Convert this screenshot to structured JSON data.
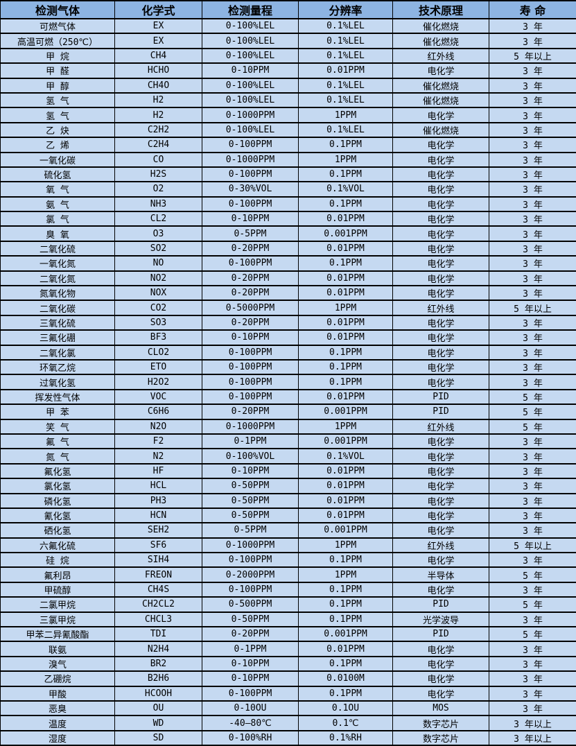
{
  "colors": {
    "header_bg": "#8DB4E2",
    "row_bg": "#C5D9F1",
    "border": "#000000",
    "text": "#000000"
  },
  "table": {
    "columns": [
      {
        "name": "gas-name",
        "label": "检测气体"
      },
      {
        "name": "formula",
        "label": "化学式"
      },
      {
        "name": "range",
        "label": "检测量程"
      },
      {
        "name": "resolution",
        "label": "分辨率"
      },
      {
        "name": "principle",
        "label": "技术原理"
      },
      {
        "name": "lifespan",
        "label": "寿 命"
      }
    ],
    "rows": [
      [
        "可燃气体",
        "EX",
        "0-100%LEL",
        "0.1%LEL",
        "催化燃烧",
        "3 年"
      ],
      [
        "高温可燃（250℃）",
        "EX",
        "0-100%LEL",
        "0.1%LEL",
        "催化燃烧",
        "3 年"
      ],
      [
        "甲 烷",
        "CH4",
        "0-100%LEL",
        "0.1%LEL",
        "红外线",
        "5 年以上"
      ],
      [
        "甲 醛",
        "HCHO",
        "0-10PPM",
        "0.01PPM",
        "电化学",
        "3 年"
      ],
      [
        "甲 醇",
        "CH4O",
        "0-100%LEL",
        "0.1%LEL",
        "催化燃烧",
        "3 年"
      ],
      [
        "氢 气",
        "H2",
        "0-100%LEL",
        "0.1%LEL",
        "催化燃烧",
        "3 年"
      ],
      [
        "氢 气",
        "H2",
        "0-1000PPM",
        "1PPM",
        "电化学",
        "3 年"
      ],
      [
        "乙 炔",
        "C2H2",
        "0-100%LEL",
        "0.1%LEL",
        "催化燃烧",
        "3 年"
      ],
      [
        "乙 烯",
        "C2H4",
        "0-100PPM",
        "0.1PPM",
        "电化学",
        "3 年"
      ],
      [
        "一氧化碳",
        "CO",
        "0-1000PPM",
        "1PPM",
        "电化学",
        "3 年"
      ],
      [
        "硫化氢",
        "H2S",
        "0-100PPM",
        "0.1PPM",
        "电化学",
        "3 年"
      ],
      [
        "氧 气",
        "O2",
        "0-30%VOL",
        "0.1%VOL",
        "电化学",
        "3 年"
      ],
      [
        "氨 气",
        "NH3",
        "0-100PPM",
        "0.1PPM",
        "电化学",
        "3 年"
      ],
      [
        "氯 气",
        "CL2",
        "0-10PPM",
        "0.01PPM",
        "电化学",
        "3 年"
      ],
      [
        "臭 氧",
        "O3",
        "0-5PPM",
        "0.001PPM",
        "电化学",
        "3 年"
      ],
      [
        "二氧化硫",
        "SO2",
        "0-20PPM",
        "0.01PPM",
        "电化学",
        "3 年"
      ],
      [
        "一氧化氮",
        "NO",
        "0-100PPM",
        "0.1PPM",
        "电化学",
        "3 年"
      ],
      [
        "二氧化氮",
        "NO2",
        "0-20PPM",
        "0.01PPM",
        "电化学",
        "3 年"
      ],
      [
        "氮氧化物",
        "NOX",
        "0-20PPM",
        "0.01PPM",
        "电化学",
        "3 年"
      ],
      [
        "二氧化碳",
        "CO2",
        "0-5000PPM",
        "1PPM",
        "红外线",
        "5 年以上"
      ],
      [
        "三氧化硫",
        "SO3",
        "0-20PPM",
        "0.01PPM",
        "电化学",
        "3 年"
      ],
      [
        "三氟化硼",
        "BF3",
        "0-10PPM",
        "0.01PPM",
        "电化学",
        "3 年"
      ],
      [
        "二氧化氯",
        "CLO2",
        "0-100PPM",
        "0.1PPM",
        "电化学",
        "3 年"
      ],
      [
        "环氧乙烷",
        "ETO",
        "0-100PPM",
        "0.1PPM",
        "电化学",
        "3 年"
      ],
      [
        "过氧化氢",
        "H2O2",
        "0-100PPM",
        "0.1PPM",
        "电化学",
        "3 年"
      ],
      [
        "挥发性气体",
        "VOC",
        "0-100PPM",
        "0.01PPM",
        "PID",
        "5 年"
      ],
      [
        "甲 苯",
        "C6H6",
        "0-20PPM",
        "0.001PPM",
        "PID",
        "5 年"
      ],
      [
        "笑 气",
        "N2O",
        "0-1000PPM",
        "1PPM",
        "红外线",
        "5 年"
      ],
      [
        "氟 气",
        "F2",
        "0-1PPM",
        "0.001PPM",
        "电化学",
        "3 年"
      ],
      [
        "氮 气",
        "N2",
        "0-100%VOL",
        "0.1%VOL",
        "电化学",
        "3 年"
      ],
      [
        "氟化氢",
        "HF",
        "0-10PPM",
        "0.01PPM",
        "电化学",
        "3 年"
      ],
      [
        "氯化氢",
        "HCL",
        "0-50PPM",
        "0.01PPM",
        "电化学",
        "3 年"
      ],
      [
        "磷化氢",
        "PH3",
        "0-50PPM",
        "0.01PPM",
        "电化学",
        "3 年"
      ],
      [
        "氰化氢",
        "HCN",
        "0-50PPM",
        "0.01PPM",
        "电化学",
        "3 年"
      ],
      [
        "硒化氢",
        "SEH2",
        "0-5PPM",
        "0.001PPM",
        "电化学",
        "3 年"
      ],
      [
        "六氟化硫",
        "SF6",
        "0-1000PPM",
        "1PPM",
        "红外线",
        "5 年以上"
      ],
      [
        "硅 烷",
        "SIH4",
        "0-100PPM",
        "0.1PPM",
        "电化学",
        "3 年"
      ],
      [
        "氟利昂",
        "FREON",
        "0-2000PPM",
        "1PPM",
        "半导体",
        "5 年"
      ],
      [
        "甲硫醇",
        "CH4S",
        "0-100PPM",
        "0.1PPM",
        "电化学",
        "3 年"
      ],
      [
        "二氯甲烷",
        "CH2CL2",
        "0-500PPM",
        "0.1PPM",
        "PID",
        "5 年"
      ],
      [
        "三氯甲烷",
        "CHCL3",
        "0-50PPM",
        "0.1PPM",
        "光学波导",
        "3 年"
      ],
      [
        "甲苯二异氰酸酯",
        "TDI",
        "0-20PPM",
        "0.001PPM",
        "PID",
        "5 年"
      ],
      [
        "联氨",
        "N2H4",
        "0-1PPM",
        "0.01PPM",
        "电化学",
        "3 年"
      ],
      [
        "溴气",
        "BR2",
        "0-10PPM",
        "0.1PPM",
        "电化学",
        "3 年"
      ],
      [
        "乙硼烷",
        "B2H6",
        "0-10PPM",
        "0.0100M",
        "电化学",
        "3 年"
      ],
      [
        "甲酸",
        "HCOOH",
        "0-100PPM",
        "0.1PPM",
        "电化学",
        "3 年"
      ],
      [
        "恶臭",
        "OU",
        "0-10OU",
        "0.1OU",
        "MOS",
        "3 年"
      ],
      [
        "温度",
        "WD",
        "-40—80℃",
        "0.1℃",
        "数字芯片",
        "3 年以上"
      ],
      [
        "湿度",
        "SD",
        "0-100%RH",
        "0.1%RH",
        "数字芯片",
        "3 年以上"
      ]
    ]
  }
}
